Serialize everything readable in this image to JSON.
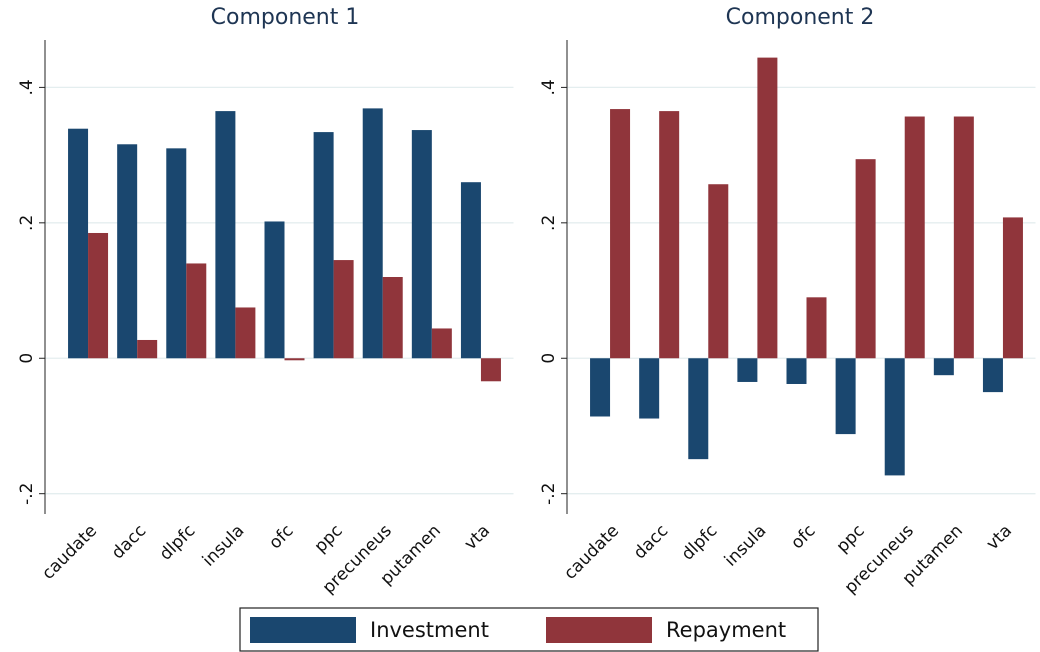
{
  "chart_data": [
    {
      "type": "bar",
      "title": "Component 1",
      "categories": [
        "caudate",
        "dacc",
        "dlpfc",
        "insula",
        "ofc",
        "ppc",
        "precuneus",
        "putamen",
        "vta"
      ],
      "series": [
        {
          "name": "Investment",
          "color": "#1a476f",
          "values": [
            0.339,
            0.316,
            0.31,
            0.365,
            0.202,
            0.334,
            0.369,
            0.337,
            0.26
          ]
        },
        {
          "name": "Repayment",
          "color": "#90353b",
          "values": [
            0.185,
            0.027,
            0.14,
            0.075,
            -0.003,
            0.145,
            0.12,
            0.044,
            -0.034
          ]
        }
      ],
      "ylim": [
        -0.23,
        0.47
      ],
      "yticks": [
        {
          "value": -0.2,
          "label": "-.2"
        },
        0,
        {
          "value": 0.2,
          "label": ".2"
        },
        {
          "value": 0.4,
          "label": ".4"
        }
      ],
      "grid": true
    },
    {
      "type": "bar",
      "title": "Component 2",
      "categories": [
        "caudate",
        "dacc",
        "dlpfc",
        "insula",
        "ofc",
        "ppc",
        "precuneus",
        "putamen",
        "vta"
      ],
      "series": [
        {
          "name": "Investment",
          "color": "#1a476f",
          "values": [
            -0.086,
            -0.089,
            -0.149,
            -0.035,
            -0.038,
            -0.112,
            -0.173,
            -0.025,
            -0.05
          ]
        },
        {
          "name": "Repayment",
          "color": "#90353b",
          "values": [
            0.368,
            0.365,
            0.257,
            0.444,
            0.09,
            0.294,
            0.357,
            0.357,
            0.208
          ]
        }
      ],
      "ylim": [
        -0.23,
        0.47
      ],
      "yticks": [
        {
          "value": -0.2,
          "label": "-.2"
        },
        0,
        {
          "value": 0.2,
          "label": ".2"
        },
        {
          "value": 0.4,
          "label": ".4"
        }
      ],
      "grid": true
    }
  ]
}
